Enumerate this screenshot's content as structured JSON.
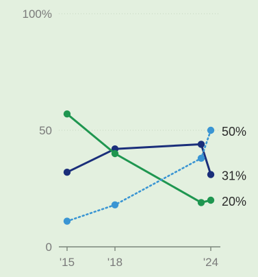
{
  "chart_data": {
    "type": "line",
    "y_axis": {
      "ylim": [
        0,
        100
      ],
      "ticks": [
        0,
        50,
        100
      ],
      "tick_labels": [
        "0",
        "50",
        "100%"
      ]
    },
    "x_axis": {
      "ticks": [
        2015,
        2018,
        2024
      ],
      "tick_labels": [
        "'15",
        "'18",
        "'24"
      ]
    },
    "grid": "horizontal dotted",
    "series": [
      {
        "key": "navy",
        "color": "#1a2e7a",
        "style": "solid",
        "points": [
          [
            2015,
            32
          ],
          [
            2018,
            42
          ],
          [
            2023.4,
            44
          ],
          [
            2024,
            31
          ]
        ],
        "end_label": "31%"
      },
      {
        "key": "green",
        "color": "#1f9650",
        "style": "solid",
        "points": [
          [
            2015,
            57
          ],
          [
            2018,
            40
          ],
          [
            2023.4,
            19
          ],
          [
            2024,
            20
          ]
        ],
        "end_label": "20%"
      },
      {
        "key": "lightblue",
        "color": "#3a95d3",
        "style": "dotted",
        "points": [
          [
            2015,
            11
          ],
          [
            2018,
            18
          ],
          [
            2023.4,
            38
          ],
          [
            2024,
            50
          ]
        ],
        "end_label": "50%"
      }
    ]
  }
}
